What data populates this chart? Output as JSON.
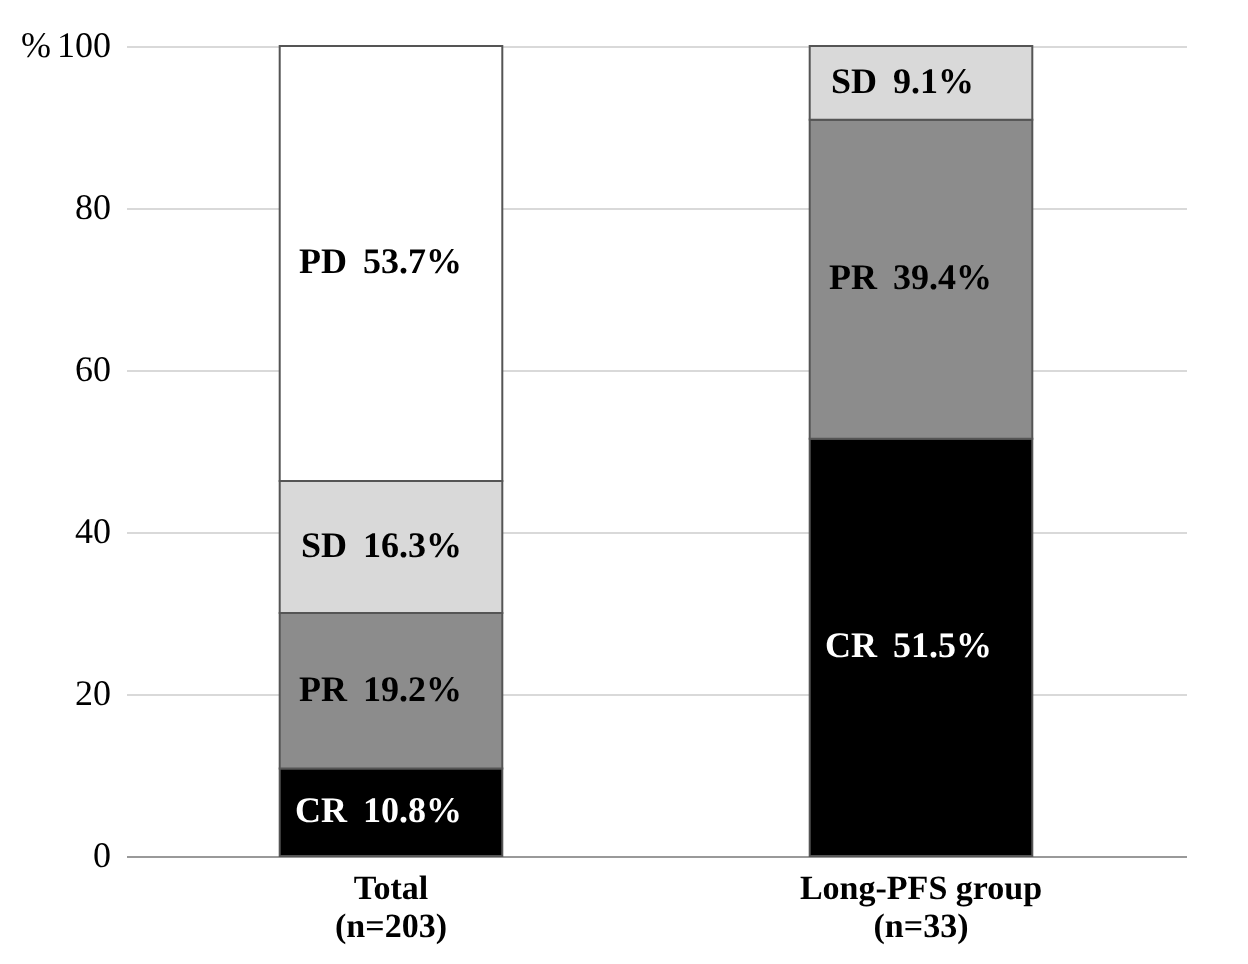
{
  "chart_data": {
    "type": "bar",
    "stacked": true,
    "ylabel": "%",
    "categories": [
      "Total\n(n=203)",
      "Long-PFS group\n(n=33)"
    ],
    "series": [
      {
        "name": "CR",
        "color": "#000000",
        "values": [
          10.8,
          51.5
        ],
        "value_labels": [
          "10.8%",
          "51.5%"
        ]
      },
      {
        "name": "PR",
        "color": "#8c8c8c",
        "values": [
          19.2,
          39.4
        ],
        "value_labels": [
          "19.2%",
          "39.4%"
        ]
      },
      {
        "name": "SD",
        "color": "#d9d9d9",
        "values": [
          16.3,
          9.1
        ],
        "value_labels": [
          "16.3%",
          "9.1%"
        ]
      },
      {
        "name": "PD",
        "color": "#ffffff",
        "values": [
          53.7,
          null
        ],
        "value_labels": [
          "53.7%",
          null
        ]
      }
    ],
    "ylim": [
      0,
      100
    ],
    "yticks": [
      0,
      20,
      40,
      60,
      80,
      100
    ],
    "grid": "y"
  }
}
